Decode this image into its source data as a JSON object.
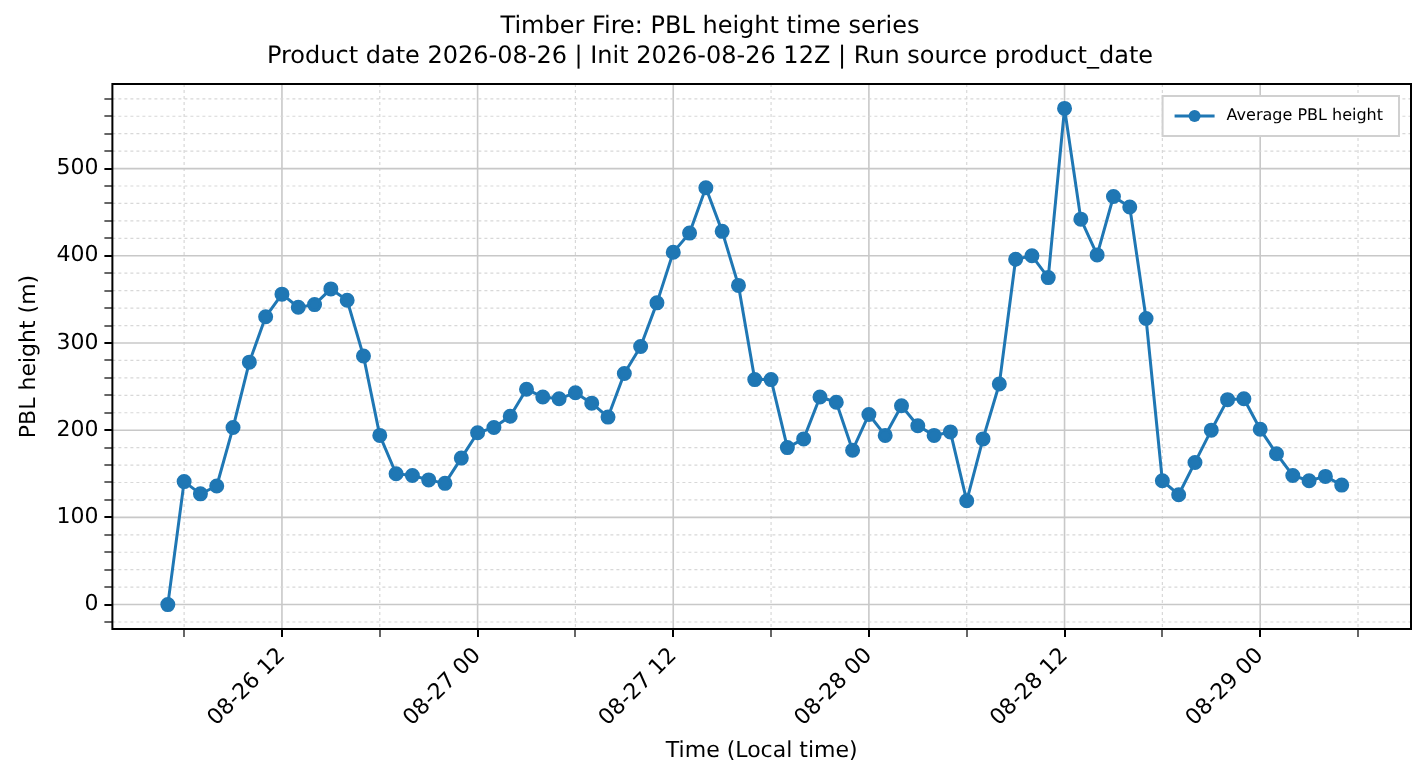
{
  "chart_data": {
    "type": "line",
    "title": "Timber Fire: PBL height time series",
    "subtitle": "Product date 2026-08-26 | Init 2026-08-26 12Z | Run source product_date",
    "xlabel": "Time (Local time)",
    "ylabel": "PBL height (m)",
    "x": [
      "2026-08-26T05:00",
      "2026-08-26T06:00",
      "2026-08-26T07:00",
      "2026-08-26T08:00",
      "2026-08-26T09:00",
      "2026-08-26T10:00",
      "2026-08-26T11:00",
      "2026-08-26T12:00",
      "2026-08-26T13:00",
      "2026-08-26T14:00",
      "2026-08-26T15:00",
      "2026-08-26T16:00",
      "2026-08-26T17:00",
      "2026-08-26T18:00",
      "2026-08-26T19:00",
      "2026-08-26T20:00",
      "2026-08-26T21:00",
      "2026-08-26T22:00",
      "2026-08-26T23:00",
      "2026-08-27T00:00",
      "2026-08-27T01:00",
      "2026-08-27T02:00",
      "2026-08-27T03:00",
      "2026-08-27T04:00",
      "2026-08-27T05:00",
      "2026-08-27T06:00",
      "2026-08-27T07:00",
      "2026-08-27T08:00",
      "2026-08-27T09:00",
      "2026-08-27T10:00",
      "2026-08-27T11:00",
      "2026-08-27T12:00",
      "2026-08-27T13:00",
      "2026-08-27T14:00",
      "2026-08-27T15:00",
      "2026-08-27T16:00",
      "2026-08-27T17:00",
      "2026-08-27T18:00",
      "2026-08-27T19:00",
      "2026-08-27T20:00",
      "2026-08-27T21:00",
      "2026-08-27T22:00",
      "2026-08-27T23:00",
      "2026-08-28T00:00",
      "2026-08-28T01:00",
      "2026-08-28T02:00",
      "2026-08-28T03:00",
      "2026-08-28T04:00",
      "2026-08-28T05:00",
      "2026-08-28T06:00",
      "2026-08-28T07:00",
      "2026-08-28T08:00",
      "2026-08-28T09:00",
      "2026-08-28T10:00",
      "2026-08-28T11:00",
      "2026-08-28T12:00",
      "2026-08-28T13:00",
      "2026-08-28T14:00",
      "2026-08-28T15:00",
      "2026-08-28T16:00",
      "2026-08-28T17:00",
      "2026-08-28T18:00",
      "2026-08-28T19:00",
      "2026-08-28T20:00",
      "2026-08-28T21:00",
      "2026-08-28T22:00",
      "2026-08-28T23:00",
      "2026-08-29T00:00",
      "2026-08-29T01:00",
      "2026-08-29T02:00",
      "2026-08-29T03:00",
      "2026-08-29T04:00",
      "2026-08-29T05:00"
    ],
    "series": [
      {
        "name": "Average PBL height",
        "color": "#1f77b4",
        "values": [
          0,
          141,
          127,
          136,
          203,
          278,
          330,
          356,
          341,
          344,
          362,
          349,
          285,
          194,
          150,
          148,
          143,
          139,
          168,
          197,
          203,
          216,
          247,
          238,
          236,
          243,
          231,
          215,
          265,
          296,
          346,
          404,
          426,
          478,
          428,
          366,
          258,
          258,
          180,
          190,
          238,
          232,
          177,
          218,
          194,
          228,
          205,
          194,
          198,
          119,
          190,
          253,
          396,
          400,
          375,
          569,
          442,
          401,
          468,
          456,
          328,
          142,
          126,
          163,
          200,
          235,
          236,
          201,
          173,
          148,
          142,
          147,
          137
        ]
      }
    ],
    "xlim": [
      "2026-08-26T01:36",
      "2026-08-29T09:15"
    ],
    "xticks": [
      {
        "value": "2026-08-26T06:00",
        "label": null
      },
      {
        "value": "2026-08-26T12:00",
        "label": "08-26 12"
      },
      {
        "value": "2026-08-26T18:00",
        "label": null
      },
      {
        "value": "2026-08-27T00:00",
        "label": "08-27 00"
      },
      {
        "value": "2026-08-27T06:00",
        "label": null
      },
      {
        "value": "2026-08-27T12:00",
        "label": "08-27 12"
      },
      {
        "value": "2026-08-27T18:00",
        "label": null
      },
      {
        "value": "2026-08-28T00:00",
        "label": "08-28 00"
      },
      {
        "value": "2026-08-28T06:00",
        "label": null
      },
      {
        "value": "2026-08-28T12:00",
        "label": "08-28 12"
      },
      {
        "value": "2026-08-28T18:00",
        "label": null
      },
      {
        "value": "2026-08-29T00:00",
        "label": "08-29 00"
      },
      {
        "value": "2026-08-29T06:00",
        "label": null
      }
    ],
    "ylim": [
      -28,
      597
    ],
    "yticks": [
      {
        "value": -20,
        "label": null
      },
      0,
      {
        "value": 20,
        "label": null
      },
      {
        "value": 40,
        "label": null
      },
      {
        "value": 60,
        "label": null
      },
      {
        "value": 80,
        "label": null
      },
      100,
      {
        "value": 120,
        "label": null
      },
      {
        "value": 140,
        "label": null
      },
      {
        "value": 160,
        "label": null
      },
      {
        "value": 180,
        "label": null
      },
      200,
      {
        "value": 220,
        "label": null
      },
      {
        "value": 240,
        "label": null
      },
      {
        "value": 260,
        "label": null
      },
      {
        "value": 280,
        "label": null
      },
      300,
      {
        "value": 320,
        "label": null
      },
      {
        "value": 340,
        "label": null
      },
      {
        "value": 360,
        "label": null
      },
      {
        "value": 380,
        "label": null
      },
      400,
      {
        "value": 420,
        "label": null
      },
      {
        "value": 440,
        "label": null
      },
      {
        "value": 460,
        "label": null
      },
      {
        "value": 480,
        "label": null
      },
      500,
      {
        "value": 520,
        "label": null
      },
      {
        "value": 540,
        "label": null
      },
      {
        "value": 560,
        "label": null
      },
      {
        "value": 580,
        "label": null
      }
    ],
    "grid": true,
    "legend": "top right",
    "marker": "circle",
    "line_style": "solid"
  }
}
